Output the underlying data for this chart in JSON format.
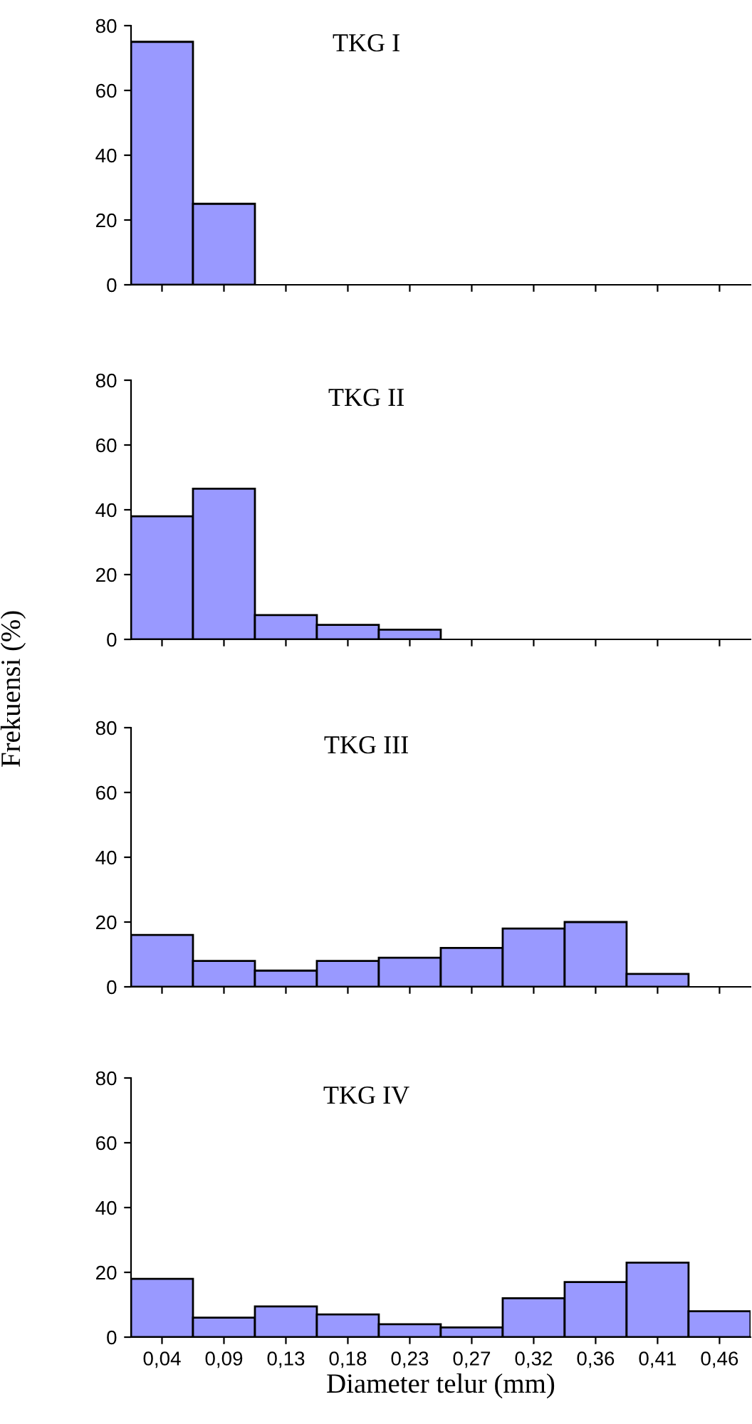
{
  "chart_data": [
    {
      "type": "bar",
      "title": "TKG I",
      "categories": [
        "0,04",
        "0,09",
        "0,13",
        "0,18",
        "0,23",
        "0,27",
        "0,32",
        "0,36",
        "0,41",
        "0,46"
      ],
      "values": [
        75,
        25,
        null,
        null,
        null,
        null,
        null,
        null,
        null,
        null
      ],
      "color": "#9999ff",
      "ylim": [
        0,
        80
      ],
      "yticks": [
        0,
        20,
        40,
        60,
        80
      ],
      "tick_labels": "y"
    },
    {
      "type": "bar",
      "title": "TKG II",
      "categories": [
        "0,04",
        "0,09",
        "0,13",
        "0,18",
        "0,23",
        "0,27",
        "0,32",
        "0,36",
        "0,41",
        "0,46"
      ],
      "values": [
        38,
        46.5,
        7.5,
        4.5,
        3,
        null,
        null,
        null,
        null,
        null
      ],
      "color": "#9999ff",
      "ylim": [
        0,
        80
      ],
      "yticks": [
        0,
        20,
        40,
        60,
        80
      ],
      "tick_labels": "y"
    },
    {
      "type": "bar",
      "title": "TKG III",
      "ylabel": "Frekuensi (%)",
      "categories": [
        "0,04",
        "0,09",
        "0,13",
        "0,18",
        "0,23",
        "0,27",
        "0,32",
        "0,36",
        "0,41",
        "0,46"
      ],
      "values": [
        16,
        8,
        5,
        8,
        9,
        12,
        18,
        20,
        4,
        null
      ],
      "color": "#9999ff",
      "ylim": [
        0,
        80
      ],
      "yticks": [
        0,
        20,
        40,
        60,
        80
      ],
      "tick_labels": "y"
    },
    {
      "type": "bar",
      "title": "TKG IV",
      "xlabel": "Diameter telur (mm)",
      "categories": [
        "0,04",
        "0,09",
        "0,13",
        "0,18",
        "0,23",
        "0,27",
        "0,32",
        "0,36",
        "0,41",
        "0,46"
      ],
      "values": [
        18,
        6,
        9.5,
        7,
        4,
        3,
        12,
        17,
        23,
        8
      ],
      "color": "#9999ff",
      "ylim": [
        0,
        80
      ],
      "yticks": [
        0,
        20,
        40,
        60,
        80
      ]
    }
  ]
}
